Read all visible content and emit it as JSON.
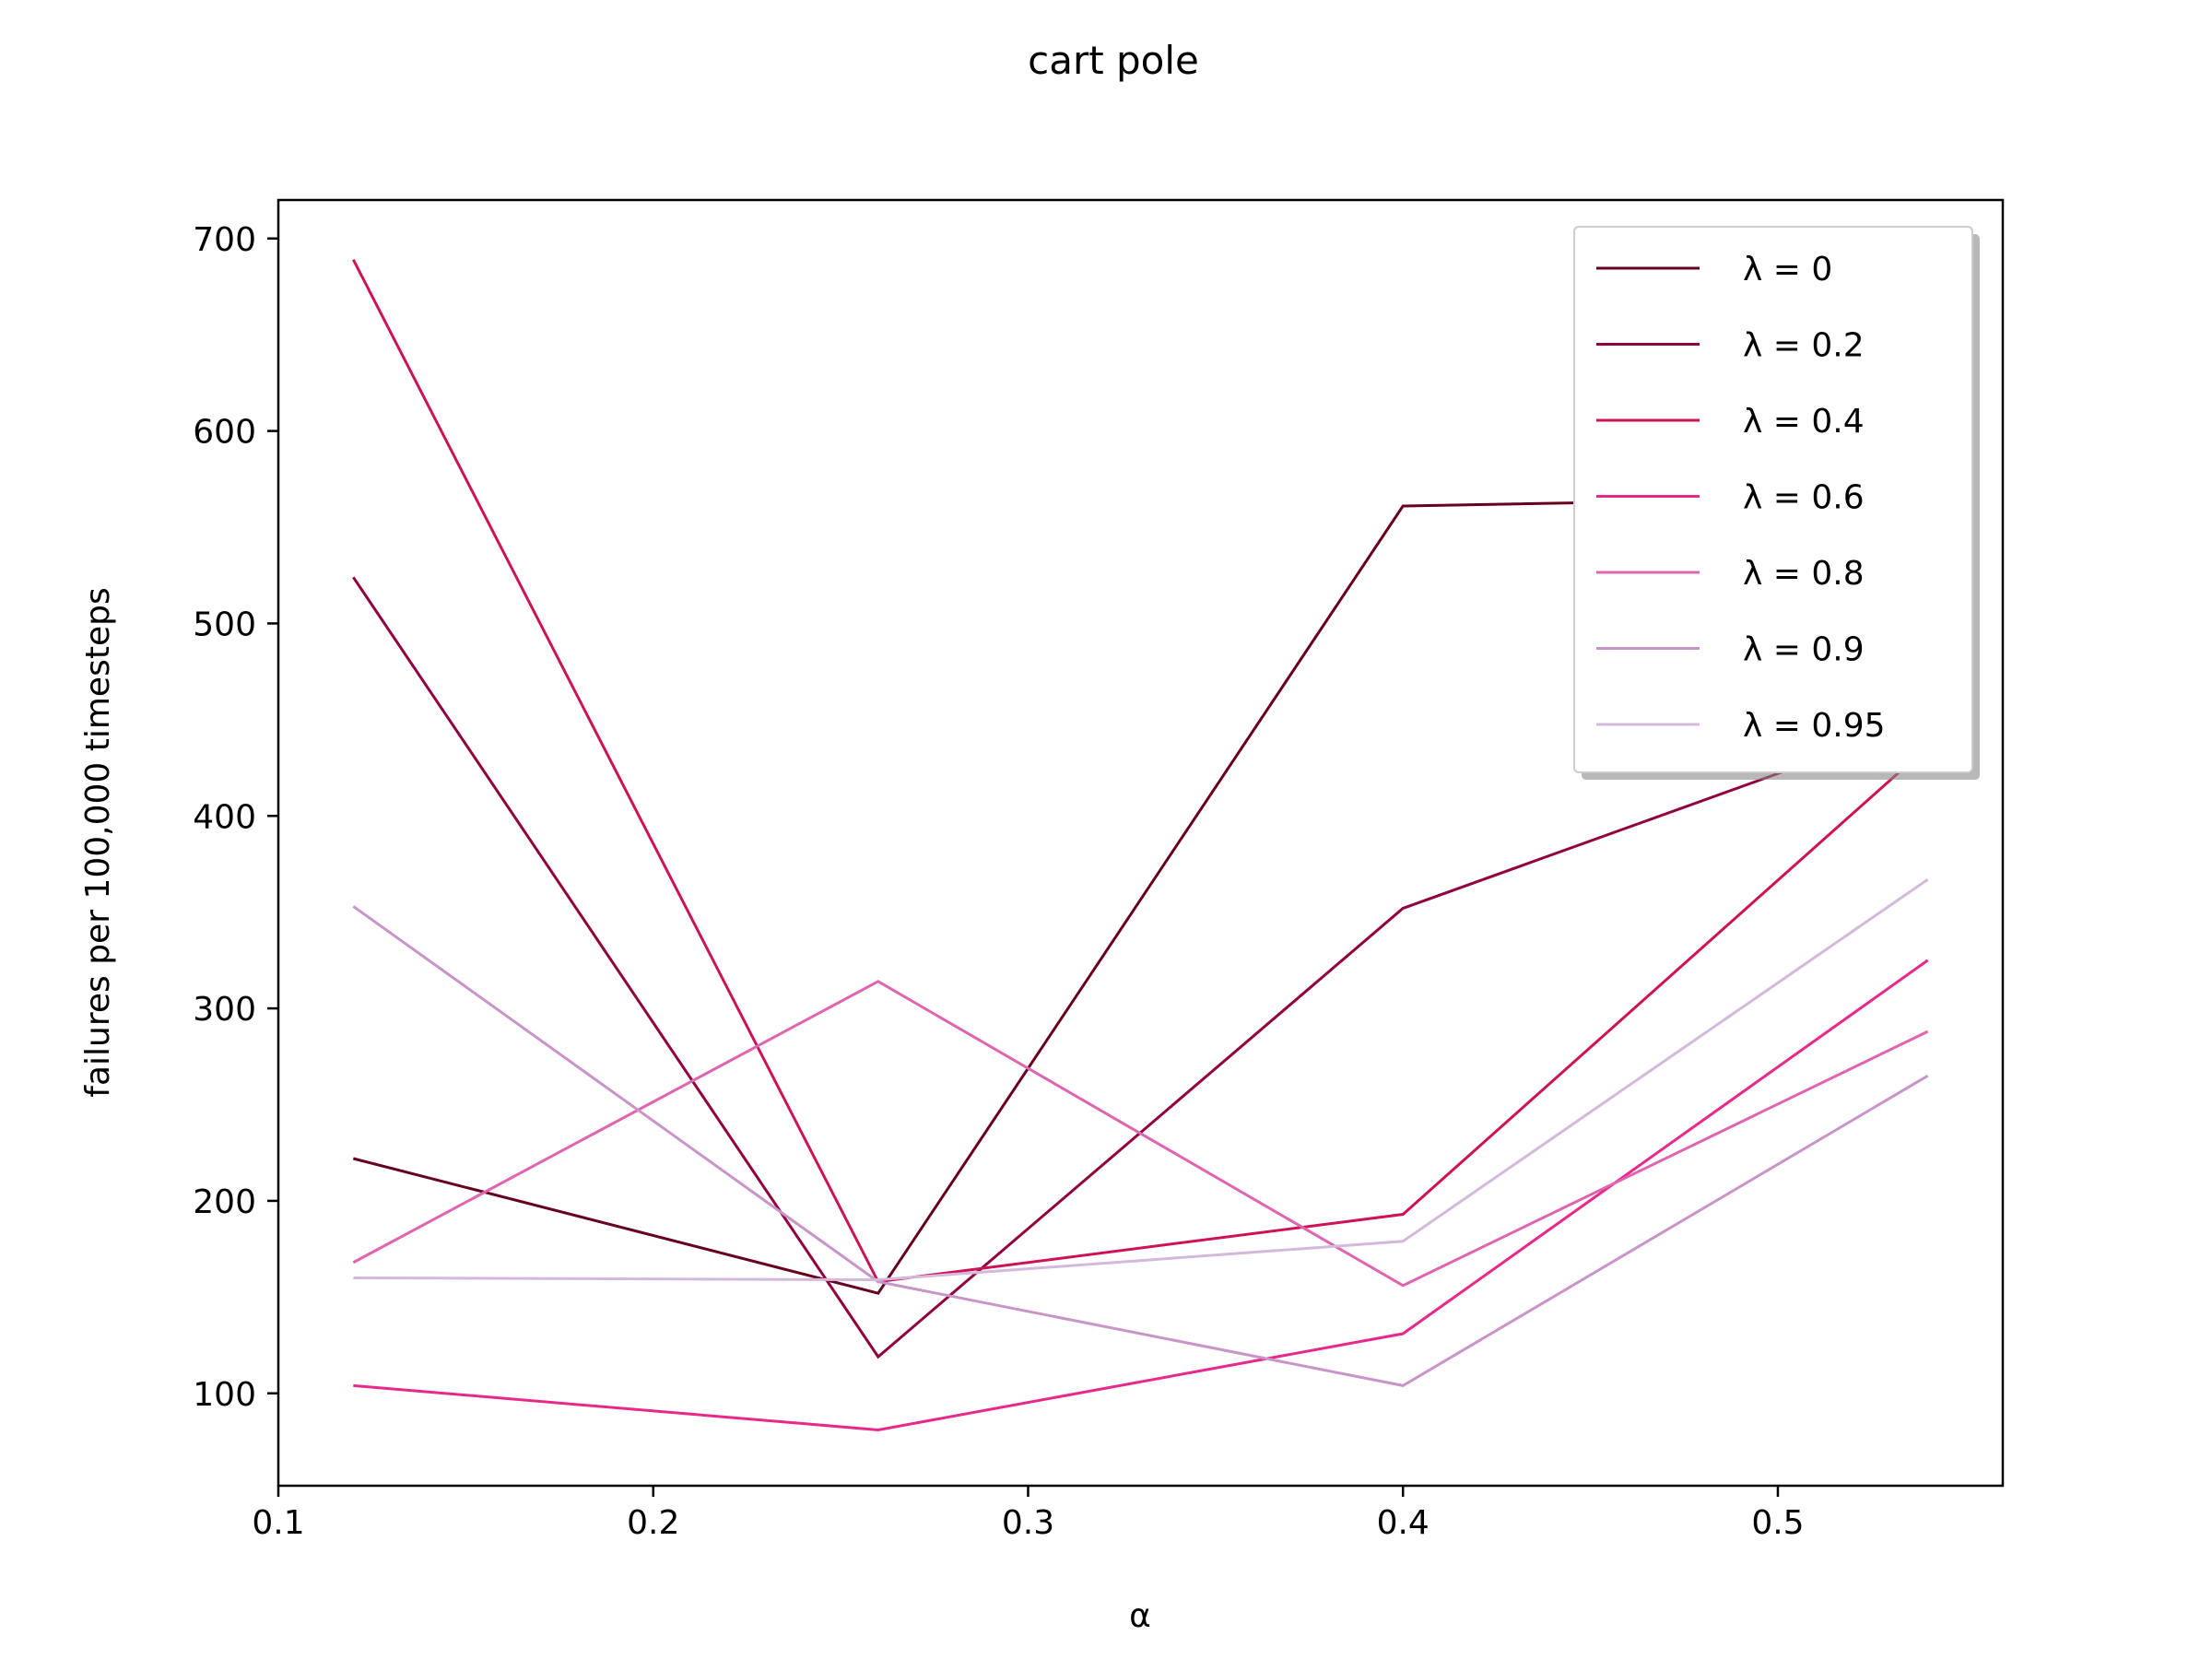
{
  "chart_data": {
    "type": "line",
    "title": "cart pole",
    "xlabel": "α",
    "ylabel": "failures per 100,000 timesteps",
    "x": [
      0.12,
      0.26,
      0.4,
      0.54
    ],
    "xlim": [
      0.1,
      0.56
    ],
    "ylim": [
      52,
      720
    ],
    "xticks": [
      "0.1",
      "0.2",
      "0.3",
      "0.4",
      "0.5"
    ],
    "yticks": [
      "100",
      "200",
      "300",
      "400",
      "500",
      "600",
      "700"
    ],
    "grid": false,
    "legend_position": "top-right",
    "series": [
      {
        "name": "λ = 0",
        "color": "#67001f",
        "values": [
          222,
          152,
          561,
          566
        ]
      },
      {
        "name": "λ = 0.2",
        "color": "#91003f",
        "values": [
          524,
          119,
          352,
          450
        ]
      },
      {
        "name": "λ = 0.4",
        "color": "#ce1256",
        "values": [
          689,
          158,
          193,
          436
        ]
      },
      {
        "name": "λ = 0.6",
        "color": "#e7298a",
        "values": [
          104,
          81,
          131,
          325
        ]
      },
      {
        "name": "λ = 0.8",
        "color": "#df65b0",
        "values": [
          168,
          314,
          156,
          288
        ]
      },
      {
        "name": "λ = 0.9",
        "color": "#c994c7",
        "values": [
          353,
          158,
          104,
          265
        ]
      },
      {
        "name": "λ = 0.95",
        "color": "#d4b9da",
        "values": [
          160,
          159,
          179,
          367
        ]
      }
    ]
  }
}
